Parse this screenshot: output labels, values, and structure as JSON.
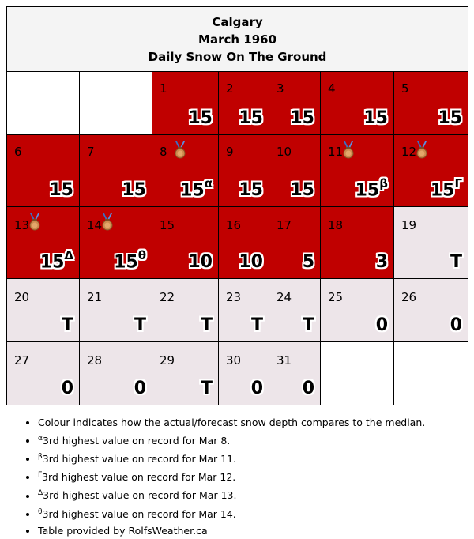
{
  "header": {
    "city": "Calgary",
    "month": "March 1960",
    "subtitle": "Daily Snow On The Ground"
  },
  "colors": {
    "above_median": "#c00000",
    "near_median": "#ede5e9",
    "empty": "#ffffff"
  },
  "days": [
    {
      "day": "1",
      "value": "15",
      "sup": "",
      "medal": false
    },
    {
      "day": "2",
      "value": "15",
      "sup": "",
      "medal": false
    },
    {
      "day": "3",
      "value": "15",
      "sup": "",
      "medal": false
    },
    {
      "day": "4",
      "value": "15",
      "sup": "",
      "medal": false
    },
    {
      "day": "5",
      "value": "15",
      "sup": "",
      "medal": false
    },
    {
      "day": "6",
      "value": "15",
      "sup": "",
      "medal": false
    },
    {
      "day": "7",
      "value": "15",
      "sup": "",
      "medal": false
    },
    {
      "day": "8",
      "value": "15",
      "sup": "α",
      "medal": true
    },
    {
      "day": "9",
      "value": "15",
      "sup": "",
      "medal": false
    },
    {
      "day": "10",
      "value": "15",
      "sup": "",
      "medal": false
    },
    {
      "day": "11",
      "value": "15",
      "sup": "β",
      "medal": true
    },
    {
      "day": "12",
      "value": "15",
      "sup": "Γ",
      "medal": true
    },
    {
      "day": "13",
      "value": "15",
      "sup": "Δ",
      "medal": true
    },
    {
      "day": "14",
      "value": "15",
      "sup": "θ",
      "medal": true
    },
    {
      "day": "15",
      "value": "10",
      "sup": "",
      "medal": false
    },
    {
      "day": "16",
      "value": "10",
      "sup": "",
      "medal": false
    },
    {
      "day": "17",
      "value": "5",
      "sup": "",
      "medal": false
    },
    {
      "day": "18",
      "value": "3",
      "sup": "",
      "medal": false
    },
    {
      "day": "19",
      "value": "T",
      "sup": "",
      "medal": false
    },
    {
      "day": "20",
      "value": "T",
      "sup": "",
      "medal": false
    },
    {
      "day": "21",
      "value": "T",
      "sup": "",
      "medal": false
    },
    {
      "day": "22",
      "value": "T",
      "sup": "",
      "medal": false
    },
    {
      "day": "23",
      "value": "T",
      "sup": "",
      "medal": false
    },
    {
      "day": "24",
      "value": "T",
      "sup": "",
      "medal": false
    },
    {
      "day": "25",
      "value": "0",
      "sup": "",
      "medal": false
    },
    {
      "day": "26",
      "value": "0",
      "sup": "",
      "medal": false
    },
    {
      "day": "27",
      "value": "0",
      "sup": "",
      "medal": false
    },
    {
      "day": "28",
      "value": "0",
      "sup": "",
      "medal": false
    },
    {
      "day": "29",
      "value": "T",
      "sup": "",
      "medal": false
    },
    {
      "day": "30",
      "value": "0",
      "sup": "",
      "medal": false
    },
    {
      "day": "31",
      "value": "0",
      "sup": "",
      "medal": false
    }
  ],
  "legend": {
    "colour_note": "Colour indicates how the actual/forecast snow depth compares to the median.",
    "notes": [
      {
        "sup": "α",
        "text": "3rd highest value on record for Mar 8."
      },
      {
        "sup": "β",
        "text": "3rd highest value on record for Mar 11."
      },
      {
        "sup": "Γ",
        "text": "3rd highest value on record for Mar 12."
      },
      {
        "sup": "Δ",
        "text": "3rd highest value on record for Mar 13."
      },
      {
        "sup": "θ",
        "text": "3rd highest value on record for Mar 14."
      }
    ],
    "credit": "Table provided by RolfsWeather.ca"
  }
}
